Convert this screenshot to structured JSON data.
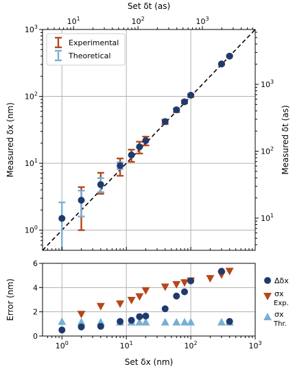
{
  "colors": {
    "experimental": "#b5471b",
    "theoretical": "#7aaed2",
    "delta_marker": "#1f3a6e",
    "grid": "#b0b0b0",
    "ideal_line": "#000000"
  },
  "chart_data": [
    {
      "type": "scatter",
      "panel": "top",
      "xlabel": "Set δx (nm)",
      "ylabel": "Measured δx (nm)",
      "top_xlabel": "Set δt (as)",
      "right_ylabel": "Measured δt (as)",
      "x_scale": "log",
      "y_scale": "log",
      "xlim": [
        0.5,
        1000
      ],
      "ylim": [
        0.5,
        1000
      ],
      "top_xlim": [
        3.3,
        6600
      ],
      "right_ylim": [
        3.3,
        6600
      ],
      "grid": true,
      "legend_position": "top-left",
      "x_ticks": [
        1,
        10,
        100,
        1000
      ],
      "y_ticks": [
        1,
        10,
        100,
        1000
      ],
      "top_ticks": [
        10,
        100,
        1000
      ],
      "right_ticks": [
        10,
        100,
        1000
      ],
      "x_tick_labels": [
        "10^0",
        "10^1",
        "10^2",
        "10^3"
      ],
      "top_tick_labels": [
        "10^1",
        "10^2",
        "10^3"
      ],
      "reference_line": "y = x (dashed)",
      "series": [
        {
          "name": "Experimental",
          "kind": "errorbar",
          "x": [
            2,
            4,
            8,
            12,
            16,
            20,
            40,
            60,
            80,
            100,
            300,
            400
          ],
          "y_low": [
            1.0,
            3.5,
            6.5,
            10.5,
            14.0,
            18.5,
            38.5,
            58,
            79,
            98,
            295,
            395
          ],
          "y_high": [
            4.4,
            7.2,
            11.8,
            16.0,
            21.0,
            25.0,
            45.0,
            66,
            87,
            108,
            310,
            410
          ]
        },
        {
          "name": "Theoretical",
          "kind": "errorbar",
          "x": [
            1,
            2,
            4,
            8
          ],
          "y_low": [
            0.45,
            1.6,
            3.7,
            8.2
          ],
          "y_high": [
            2.6,
            3.9,
            6.0,
            10.3
          ]
        },
        {
          "kind": "markers",
          "x": [
            1,
            2,
            4,
            8,
            12,
            16,
            20,
            40,
            60,
            80,
            100,
            300,
            400
          ],
          "y": [
            1.5,
            2.8,
            4.8,
            9.2,
            13.3,
            17.6,
            21.8,
            42.0,
            63.0,
            83.0,
            104,
            305,
            400
          ]
        }
      ]
    },
    {
      "type": "scatter",
      "panel": "bottom",
      "xlabel": "Set δx (nm)",
      "ylabel": "Error (nm)",
      "x_scale": "log",
      "xlim": [
        0.5,
        1000
      ],
      "ylim": [
        0,
        6
      ],
      "y_ticks": [
        0,
        2,
        4,
        6
      ],
      "x_ticks": [
        1,
        10,
        100,
        1000
      ],
      "x_tick_labels": [
        "10^0",
        "10^1",
        "10^2",
        "10^3"
      ],
      "grid": true,
      "legend_position": "right-outside",
      "series": [
        {
          "name": "Δδx",
          "marker": "circle",
          "x": [
            1,
            2,
            4,
            8,
            12,
            16,
            20,
            40,
            60,
            80,
            100,
            300,
            400
          ],
          "y": [
            0.5,
            0.75,
            0.8,
            1.2,
            1.3,
            1.6,
            1.65,
            2.25,
            3.3,
            3.65,
            4.55,
            5.35,
            1.2
          ]
        },
        {
          "name": "σx Exp.",
          "marker": "triangle-down",
          "x": [
            2,
            4,
            8,
            12,
            16,
            20,
            40,
            60,
            80,
            100,
            200,
            300,
            400
          ],
          "y": [
            1.8,
            2.45,
            2.65,
            2.95,
            3.25,
            3.75,
            4.05,
            4.25,
            4.4,
            4.55,
            4.75,
            5.05,
            5.35
          ]
        },
        {
          "name": "σx Thr.",
          "marker": "triangle-up",
          "x": [
            1,
            2,
            4,
            8,
            12,
            16,
            20,
            40,
            60,
            80,
            100,
            300,
            400
          ],
          "y": [
            1.2,
            1.15,
            1.15,
            1.15,
            1.15,
            1.15,
            1.15,
            1.15,
            1.15,
            1.15,
            1.15,
            1.15,
            1.15
          ]
        }
      ]
    }
  ],
  "legend_top": {
    "experimental": "Experimental",
    "theoretical": "Theoretical"
  },
  "legend_bottom": {
    "delta": "Δδx",
    "exp_sigma": "σx",
    "exp_sub": "Exp.",
    "thr_sigma": "σx",
    "thr_sub": "Thr."
  }
}
